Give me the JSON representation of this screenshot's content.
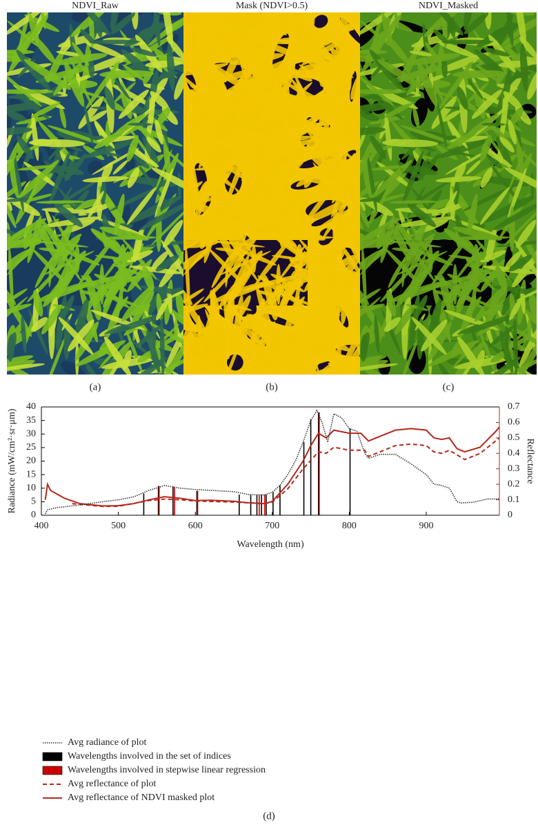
{
  "panels": [
    {
      "title": "NDVI_Raw",
      "caption": "(a)"
    },
    {
      "title": "Mask (NDVI>0.5)",
      "caption": "(b)"
    },
    {
      "title": "NDVI_Masked",
      "caption": "(c)"
    }
  ],
  "chart_data": {
    "type": "line",
    "caption": "(d)",
    "x_label": "Wavelength (nm)",
    "y_label": "Radiance (mW/cm²·sr·μm)",
    "y2_label": "Reflectance",
    "xlim": [
      400,
      995
    ],
    "xticks": [
      400,
      500,
      600,
      700,
      800,
      900
    ],
    "ylim": [
      0,
      40
    ],
    "yticks": [
      0,
      5,
      10,
      15,
      20,
      25,
      30,
      35,
      40
    ],
    "y2lim": [
      0,
      0.7
    ],
    "y2ticks": [
      0,
      0.1,
      0.2,
      0.3,
      0.4,
      0.5,
      0.6,
      0.7
    ],
    "series": [
      {
        "name": "Avg radiance of plot",
        "type": "line",
        "style": "dotted",
        "color": "#333333",
        "x": [
          405,
          408,
          420,
          450,
          480,
          500,
          520,
          530,
          540,
          555,
          560,
          570,
          580,
          600,
          620,
          650,
          670,
          690,
          700,
          710,
          720,
          730,
          740,
          750,
          758,
          765,
          772,
          780,
          790,
          800,
          810,
          820,
          825,
          840,
          860,
          880,
          900,
          910,
          920,
          930,
          940,
          945,
          960,
          980,
          995
        ],
        "values": [
          0.5,
          2,
          2.8,
          3.8,
          5,
          5.7,
          6.8,
          8,
          9.2,
          10.5,
          11,
          10.5,
          10,
          9.5,
          9.2,
          8.7,
          7.6,
          7.5,
          8.5,
          11,
          15,
          20,
          27,
          35,
          38.7,
          34,
          27,
          37.5,
          36,
          32,
          31,
          23,
          21,
          22.5,
          22.5,
          19,
          15,
          11.5,
          11,
          10,
          5,
          4.5,
          4.8,
          6,
          6
        ]
      },
      {
        "name": "Wavelengths involved in the set of indices",
        "type": "bar",
        "color": "#000000",
        "x": [
          533,
          552,
          571,
          602,
          657,
          672,
          680,
          686,
          692,
          701,
          710,
          741,
          750,
          760,
          801
        ],
        "values": [
          8,
          10.8,
          10.6,
          9,
          7.6,
          7.6,
          7.6,
          7.6,
          7.6,
          8.6,
          11,
          27,
          35.5,
          38,
          32
        ]
      },
      {
        "name": "Wavelengths involved in stepwise linear regression",
        "type": "bar",
        "color": "#cc0000",
        "x": [
          553,
          573,
          603,
          683,
          690,
          761
        ],
        "values": [
          10.8,
          10.5,
          9,
          7.6,
          7.6,
          38
        ]
      },
      {
        "name": "Avg reflectance of plot",
        "type": "line",
        "style": "dashed",
        "color": "#b5271b",
        "axis": "y2",
        "x": [
          440,
          450,
          480,
          500,
          540,
          560,
          580,
          600,
          650,
          690,
          700,
          720,
          740,
          760,
          770,
          780,
          800,
          820,
          825,
          840,
          860,
          880,
          900,
          910,
          920,
          930,
          950,
          970,
          995
        ],
        "values": [
          0.075,
          0.07,
          0.057,
          0.058,
          0.095,
          0.105,
          0.1,
          0.092,
          0.085,
          0.075,
          0.085,
          0.17,
          0.3,
          0.41,
          0.4,
          0.44,
          0.42,
          0.42,
          0.38,
          0.41,
          0.45,
          0.46,
          0.45,
          0.41,
          0.4,
          0.42,
          0.36,
          0.4,
          0.5
        ]
      },
      {
        "name": "Avg reflectance of NDVI masked plot",
        "type": "line",
        "style": "solid",
        "color": "#b5271b",
        "axis": "y2",
        "x": [
          405,
          408,
          412,
          430,
          450,
          480,
          500,
          520,
          540,
          560,
          580,
          600,
          620,
          650,
          670,
          690,
          700,
          720,
          740,
          750,
          760,
          770,
          780,
          800,
          815,
          825,
          840,
          860,
          880,
          900,
          910,
          920,
          930,
          940,
          950,
          970,
          990,
          995
        ],
        "values": [
          0.1,
          0.2,
          0.16,
          0.11,
          0.075,
          0.06,
          0.062,
          0.075,
          0.1,
          0.12,
          0.11,
          0.095,
          0.097,
          0.09,
          0.08,
          0.075,
          0.09,
          0.2,
          0.35,
          0.45,
          0.53,
          0.5,
          0.55,
          0.53,
          0.53,
          0.48,
          0.51,
          0.55,
          0.56,
          0.55,
          0.5,
          0.49,
          0.5,
          0.43,
          0.41,
          0.44,
          0.54,
          0.57
        ]
      }
    ]
  }
}
